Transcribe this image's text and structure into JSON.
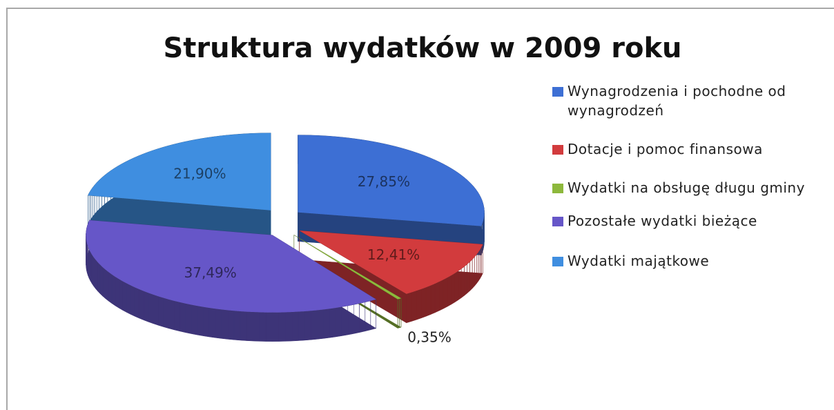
{
  "chart_data": {
    "type": "pie",
    "title": "Struktura wydatków w 2009 roku",
    "categories": [
      "Wynagrodzenia i pochodne od wynagrodzeń",
      "Dotacje i pomoc finansowa",
      "Wydatki na obsługę długu gminy",
      "Pozostałe wydatki bieżące",
      "Wydatki majątkowe"
    ],
    "values": [
      27.85,
      12.41,
      0.35,
      37.49,
      21.9
    ],
    "value_labels": [
      "27,85%",
      "12,41%",
      "0,35%",
      "37,49%",
      "21,90%"
    ],
    "colors": [
      "#3d6fd4",
      "#d23b3d",
      "#8db83c",
      "#6656c8",
      "#3f8ee0"
    ],
    "legend": "right"
  }
}
